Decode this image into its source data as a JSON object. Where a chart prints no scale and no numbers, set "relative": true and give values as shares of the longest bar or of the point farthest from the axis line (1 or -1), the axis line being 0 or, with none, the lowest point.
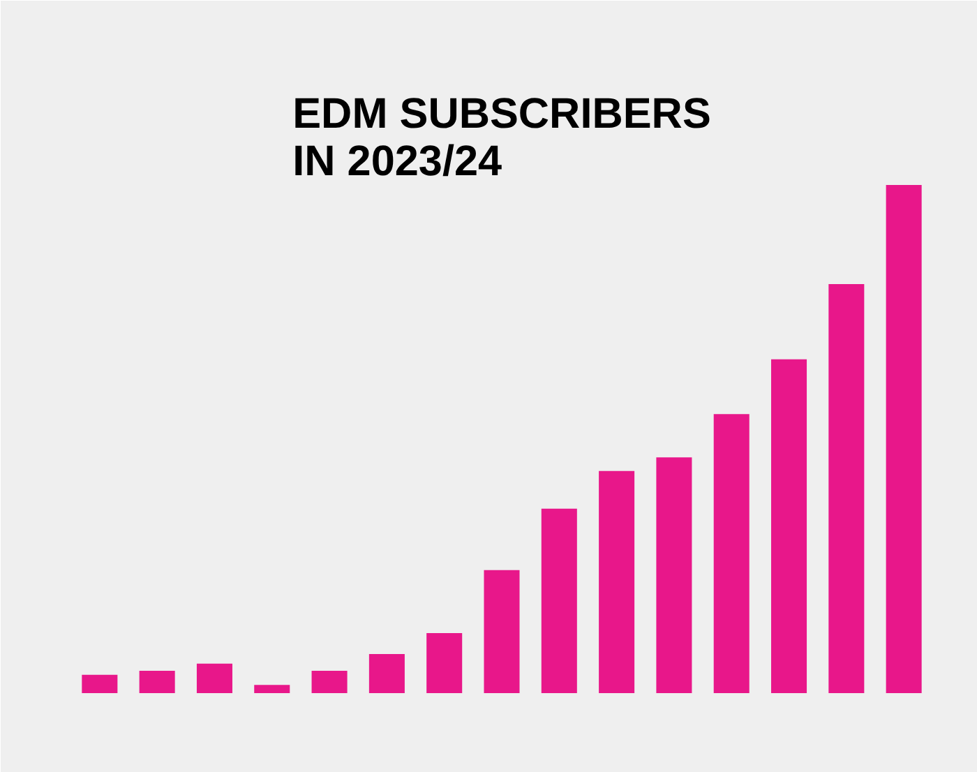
{
  "chart_data": {
    "type": "bar",
    "title": "EDM SUBSCRIBERS\nIN 2023/24",
    "relative": true,
    "categories": [
      null,
      null,
      null,
      null,
      null,
      null,
      null,
      null,
      null,
      null,
      null,
      null,
      null,
      null,
      null
    ],
    "values": [
      0.036,
      0.044,
      0.058,
      0.016,
      0.044,
      0.077,
      0.118,
      0.242,
      0.363,
      0.437,
      0.464,
      0.549,
      0.657,
      0.805,
      1
    ],
    "color": "#e8178a"
  }
}
